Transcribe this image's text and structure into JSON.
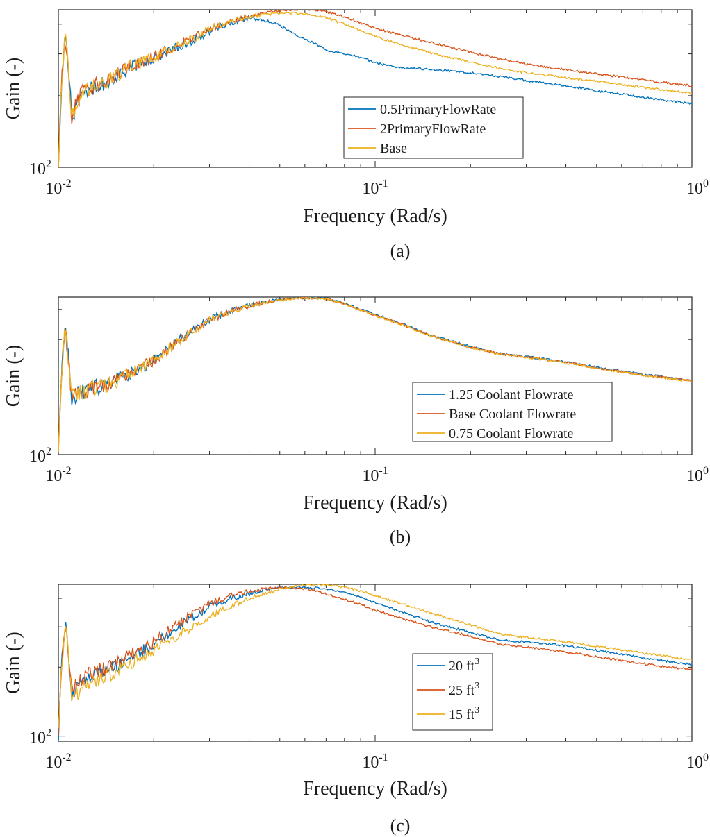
{
  "chart_data": [
    {
      "type": "line",
      "panel_label": "(a)",
      "xlabel": "Frequency (Rad/s)",
      "ylabel": "Gain (-)",
      "xscale": "log",
      "yscale": "log",
      "xlim": [
        0.01,
        1
      ],
      "ylim": [
        100,
        460
      ],
      "x_ticks": [
        {
          "base": "10",
          "exp": "-2"
        },
        {
          "base": "10",
          "exp": "-1"
        },
        {
          "base": "10",
          "exp": "0"
        }
      ],
      "y_ticks": [
        {
          "base": "10",
          "exp": "2"
        }
      ],
      "legend_position": "center-right",
      "x": [
        0.01,
        0.0105,
        0.011,
        0.012,
        0.013,
        0.015,
        0.017,
        0.02,
        0.023,
        0.027,
        0.03,
        0.035,
        0.04,
        0.045,
        0.05,
        0.055,
        0.06,
        0.065,
        0.07,
        0.08,
        0.09,
        0.1,
        0.12,
        0.15,
        0.2,
        0.25,
        0.3,
        0.4,
        0.5,
        0.6,
        0.7,
        0.8,
        1.0
      ],
      "series": [
        {
          "name": "0.5PrimaryFlowRate",
          "color": "#0072BD",
          "values": [
            100,
            360,
            165,
            205,
            215,
            235,
            265,
            285,
            315,
            345,
            375,
            405,
            425,
            415,
            395,
            365,
            345,
            330,
            310,
            300,
            290,
            275,
            262,
            258,
            250,
            240,
            232,
            220,
            210,
            203,
            197,
            192,
            185
          ]
        },
        {
          "name": "2PrimaryFlowRate",
          "color": "#D95319",
          "values": [
            100,
            360,
            165,
            210,
            220,
            240,
            270,
            290,
            320,
            355,
            385,
            415,
            432,
            445,
            455,
            460,
            462,
            458,
            450,
            430,
            405,
            385,
            360,
            335,
            305,
            285,
            272,
            257,
            247,
            240,
            233,
            228,
            220
          ]
        },
        {
          "name": "Base",
          "color": "#EDB120",
          "values": [
            100,
            360,
            165,
            208,
            218,
            238,
            268,
            288,
            318,
            352,
            382,
            412,
            430,
            440,
            445,
            446,
            442,
            435,
            425,
            400,
            375,
            355,
            328,
            302,
            277,
            260,
            250,
            238,
            230,
            223,
            217,
            212,
            205
          ]
        }
      ]
    },
    {
      "type": "line",
      "panel_label": "(b)",
      "xlabel": "Frequency (Rad/s)",
      "ylabel": "Gain (-)",
      "xscale": "log",
      "yscale": "log",
      "xlim": [
        0.01,
        1
      ],
      "ylim": [
        100,
        450
      ],
      "x_ticks": [
        {
          "base": "10",
          "exp": "-2"
        },
        {
          "base": "10",
          "exp": "-1"
        },
        {
          "base": "10",
          "exp": "0"
        }
      ],
      "y_ticks": [
        {
          "base": "10",
          "exp": "2"
        }
      ],
      "legend_position": "lower-right",
      "x": [
        0.01,
        0.0105,
        0.011,
        0.012,
        0.013,
        0.015,
        0.017,
        0.02,
        0.023,
        0.027,
        0.03,
        0.035,
        0.04,
        0.045,
        0.05,
        0.055,
        0.06,
        0.065,
        0.07,
        0.08,
        0.09,
        0.1,
        0.12,
        0.15,
        0.2,
        0.25,
        0.3,
        0.4,
        0.5,
        0.6,
        0.7,
        0.8,
        1.0
      ],
      "series": [
        {
          "name": "1.25 Coolant Flowrate",
          "color": "#0072BD",
          "values": [
            100,
            330,
            175,
            180,
            190,
            200,
            220,
            245,
            285,
            330,
            365,
            395,
            415,
            430,
            440,
            446,
            448,
            447,
            445,
            425,
            400,
            380,
            350,
            312,
            280,
            262,
            255,
            242,
            230,
            222,
            215,
            211,
            203
          ]
        },
        {
          "name": "Base Coolant Flowrate",
          "color": "#D95319",
          "values": [
            100,
            330,
            175,
            180,
            190,
            200,
            220,
            245,
            284,
            328,
            363,
            393,
            413,
            428,
            438,
            444,
            446,
            445,
            443,
            423,
            398,
            378,
            349,
            311,
            279,
            261,
            254,
            241,
            229,
            221,
            214,
            210,
            202
          ]
        },
        {
          "name": "0.75 Coolant Flowrate",
          "color": "#EDB120",
          "values": [
            100,
            330,
            175,
            180,
            190,
            200,
            220,
            244,
            283,
            327,
            362,
            392,
            412,
            427,
            437,
            443,
            445,
            444,
            442,
            422,
            397,
            377,
            348,
            310,
            278,
            260,
            253,
            240,
            228,
            220,
            213,
            209,
            201
          ]
        }
      ]
    },
    {
      "type": "line",
      "panel_label": "(c)",
      "xlabel": "Frequency (Rad/s)",
      "ylabel": "Gain (-)",
      "xscale": "log",
      "yscale": "log",
      "xlim": [
        0.01,
        1
      ],
      "ylim": [
        95,
        460
      ],
      "x_ticks": [
        {
          "base": "10",
          "exp": "-2"
        },
        {
          "base": "10",
          "exp": "-1"
        },
        {
          "base": "10",
          "exp": "0"
        }
      ],
      "y_ticks": [
        {
          "base": "10",
          "exp": "2"
        }
      ],
      "legend_position": "lower-right",
      "legend_superscript": "3",
      "x": [
        0.01,
        0.0105,
        0.011,
        0.012,
        0.013,
        0.015,
        0.017,
        0.02,
        0.023,
        0.027,
        0.03,
        0.035,
        0.04,
        0.045,
        0.05,
        0.055,
        0.06,
        0.065,
        0.07,
        0.08,
        0.09,
        0.1,
        0.12,
        0.15,
        0.2,
        0.25,
        0.3,
        0.4,
        0.5,
        0.6,
        0.7,
        0.8,
        1.0
      ],
      "series": [
        {
          "name": "20 ft",
          "color": "#0072BD",
          "values": [
            100,
            310,
            150,
            175,
            185,
            200,
            222,
            250,
            290,
            335,
            368,
            398,
            420,
            435,
            443,
            447,
            447,
            444,
            440,
            425,
            405,
            382,
            350,
            315,
            283,
            262,
            258,
            248,
            237,
            228,
            220,
            214,
            205
          ]
        },
        {
          "name": "25 ft",
          "color": "#D95319",
          "values": [
            100,
            320,
            155,
            180,
            190,
            205,
            228,
            258,
            300,
            345,
            380,
            410,
            430,
            440,
            444,
            444,
            440,
            430,
            418,
            395,
            375,
            355,
            328,
            300,
            273,
            252,
            245,
            233,
            222,
            214,
            207,
            202,
            195
          ]
        },
        {
          "name": "15 ft",
          "color": "#EDB120",
          "values": [
            100,
            300,
            145,
            165,
            175,
            190,
            210,
            235,
            268,
            305,
            335,
            370,
            398,
            420,
            437,
            450,
            458,
            460,
            458,
            448,
            430,
            410,
            380,
            345,
            305,
            278,
            270,
            258,
            247,
            238,
            230,
            225,
            215
          ]
        }
      ]
    }
  ]
}
